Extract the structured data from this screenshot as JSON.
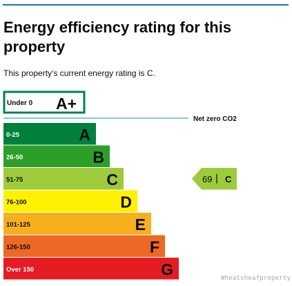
{
  "page": {
    "title": "Energy efficiency rating for this property",
    "intro": "This property’s current energy rating is C.",
    "watermark": "Wheatsheafproperty.com"
  },
  "chart_data": {
    "type": "bar",
    "title": "",
    "bands": [
      {
        "range": "Under 0",
        "letter": "A+",
        "color": "#ffffff",
        "border": "#008054",
        "outlined": true
      },
      {
        "range": "0-25",
        "letter": "A",
        "color": "#007f3d"
      },
      {
        "range": "26-50",
        "letter": "B",
        "color": "#2c9f29"
      },
      {
        "range": "51-75",
        "letter": "C",
        "color": "#9dcb3c"
      },
      {
        "range": "76-100",
        "letter": "D",
        "color": "#fff200"
      },
      {
        "range": "101-125",
        "letter": "E",
        "color": "#f7af1d"
      },
      {
        "range": "126-150",
        "letter": "F",
        "color": "#ed6823"
      },
      {
        "range": "Over 150",
        "letter": "G",
        "color": "#e31d23"
      }
    ],
    "net_zero_label": "Net zero CO2",
    "net_zero_line_color": "#84c6e8",
    "current_rating": {
      "score": "69",
      "letter": "C",
      "band": "C",
      "color": "#9dcb3c"
    }
  }
}
